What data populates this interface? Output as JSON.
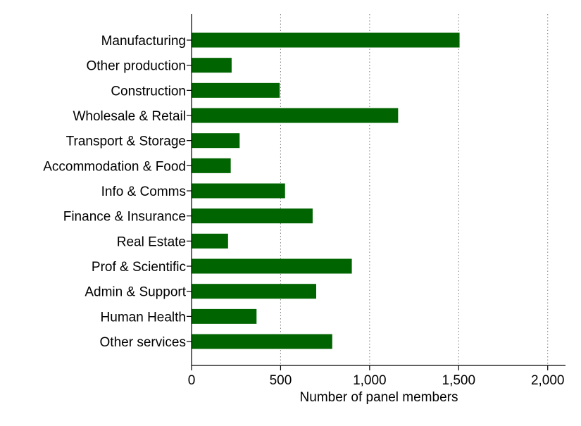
{
  "chart_data": {
    "type": "bar",
    "orientation": "horizontal",
    "title": "",
    "xlabel": "Number of panel members",
    "ylabel": "",
    "xlim": [
      0,
      2100
    ],
    "xticks": [
      0,
      500,
      1000,
      1500,
      2000
    ],
    "xtick_labels": [
      "0",
      "500",
      "1,000",
      "1,500",
      "2,000"
    ],
    "grid": "vertical dotted",
    "legend": "none",
    "bar_color": "#006400",
    "categories": [
      "Manufacturing",
      "Other production",
      "Construction",
      "Wholesale & Retail",
      "Transport & Storage",
      "Accommodation & Food",
      "Info & Comms",
      "Finance & Insurance",
      "Real Estate",
      "Prof & Scientific",
      "Admin & Support",
      "Human Health",
      "Other services"
    ],
    "values": [
      1505,
      225,
      495,
      1160,
      270,
      220,
      525,
      680,
      205,
      900,
      700,
      365,
      790
    ]
  }
}
